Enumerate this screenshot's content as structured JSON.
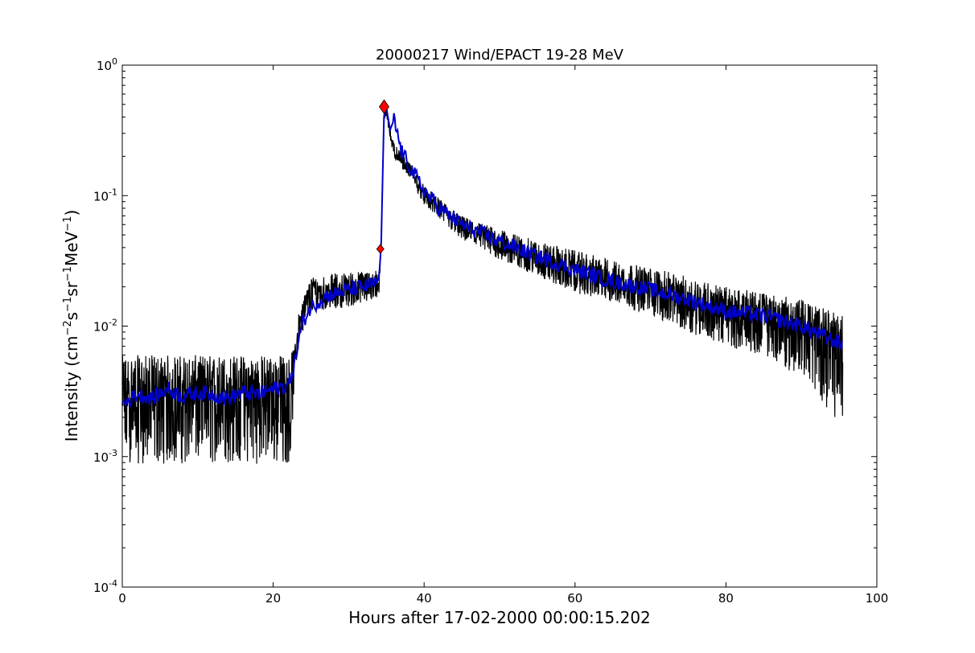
{
  "chart_data": {
    "type": "line",
    "title": "20000217 Wind/EPACT 19-28 MeV",
    "xlabel": "Hours after 17-02-2000 00:00:15.202",
    "ylabel_parts": {
      "prefix": "Intensity (cm",
      "exp1": "−2",
      "mid1": "s",
      "exp2": "−1",
      "mid2": "sr",
      "exp3": "−1",
      "mid3": "MeV",
      "exp4": "−1",
      "suffix": ")"
    },
    "xlim": [
      0,
      100
    ],
    "ylim": [
      0.0001,
      1
    ],
    "yscale": "log",
    "grid": false,
    "x_ticks": [
      0,
      20,
      40,
      60,
      80,
      100
    ],
    "x_tick_labels": [
      "0",
      "20",
      "40",
      "60",
      "80",
      "100"
    ],
    "y_ticks": [
      0.0001,
      0.001,
      0.01,
      0.1,
      1
    ],
    "y_tick_labels": [
      {
        "base": "10",
        "exp": "-4"
      },
      {
        "base": "10",
        "exp": "-3"
      },
      {
        "base": "10",
        "exp": "-2"
      },
      {
        "base": "10",
        "exp": "-1"
      },
      {
        "base": "10",
        "exp": "0"
      }
    ],
    "series": [
      {
        "style": "raw",
        "color": "#000000",
        "envelope": {
          "x": [
            0,
            22.3,
            22.8,
            23.5,
            25,
            30,
            34.0,
            34.3,
            34.7,
            35.0,
            35.5,
            36,
            38,
            40,
            42,
            45,
            50,
            55,
            60,
            65,
            70,
            75,
            80,
            85,
            90,
            95.5
          ],
          "center": [
            0.0028,
            0.0032,
            0.005,
            0.011,
            0.018,
            0.019,
            0.021,
            0.04,
            0.4,
            0.47,
            0.3,
            0.22,
            0.16,
            0.1,
            0.08,
            0.058,
            0.042,
            0.032,
            0.026,
            0.022,
            0.019,
            0.016,
            0.013,
            0.012,
            0.01,
            0.0075
          ],
          "lower": [
            0.00088,
            0.00088,
            0.0035,
            0.008,
            0.013,
            0.014,
            0.016,
            0.035,
            0.35,
            0.42,
            0.26,
            0.19,
            0.14,
            0.085,
            0.066,
            0.045,
            0.032,
            0.024,
            0.018,
            0.015,
            0.012,
            0.009,
            0.007,
            0.006,
            0.004,
            0.0017
          ],
          "upper": [
            0.006,
            0.006,
            0.007,
            0.014,
            0.024,
            0.026,
            0.027,
            0.045,
            0.43,
            0.5,
            0.34,
            0.25,
            0.18,
            0.12,
            0.095,
            0.07,
            0.055,
            0.045,
            0.038,
            0.032,
            0.028,
            0.024,
            0.02,
            0.018,
            0.016,
            0.012
          ]
        }
      },
      {
        "style": "smoothed",
        "color": "#0000cc",
        "x": [
          0,
          2,
          4,
          6,
          8,
          10,
          12,
          14,
          16,
          18,
          20,
          22,
          22.8,
          23.5,
          24,
          25,
          27,
          30,
          32,
          33.5,
          34.0,
          34.3,
          34.7,
          35.0,
          35.5,
          36,
          37,
          38,
          40,
          42,
          45,
          48,
          50,
          55,
          60,
          65,
          70,
          75,
          80,
          85,
          90,
          95.5
        ],
        "y": [
          0.0025,
          0.003,
          0.0028,
          0.0033,
          0.0029,
          0.0031,
          0.003,
          0.0028,
          0.0031,
          0.003,
          0.0033,
          0.0035,
          0.005,
          0.0085,
          0.011,
          0.014,
          0.017,
          0.019,
          0.02,
          0.021,
          0.023,
          0.04,
          0.45,
          0.47,
          0.32,
          0.38,
          0.22,
          0.17,
          0.11,
          0.08,
          0.06,
          0.05,
          0.045,
          0.034,
          0.027,
          0.022,
          0.019,
          0.016,
          0.013,
          0.012,
          0.01,
          0.0072
        ]
      }
    ],
    "markers": [
      {
        "x": 34.2,
        "y": 0.039,
        "shape": "diamond",
        "size": "small",
        "color": "#ff0000"
      },
      {
        "x": 34.7,
        "y": 0.48,
        "shape": "diamond",
        "size": "large",
        "color": "#ff0000"
      }
    ]
  }
}
